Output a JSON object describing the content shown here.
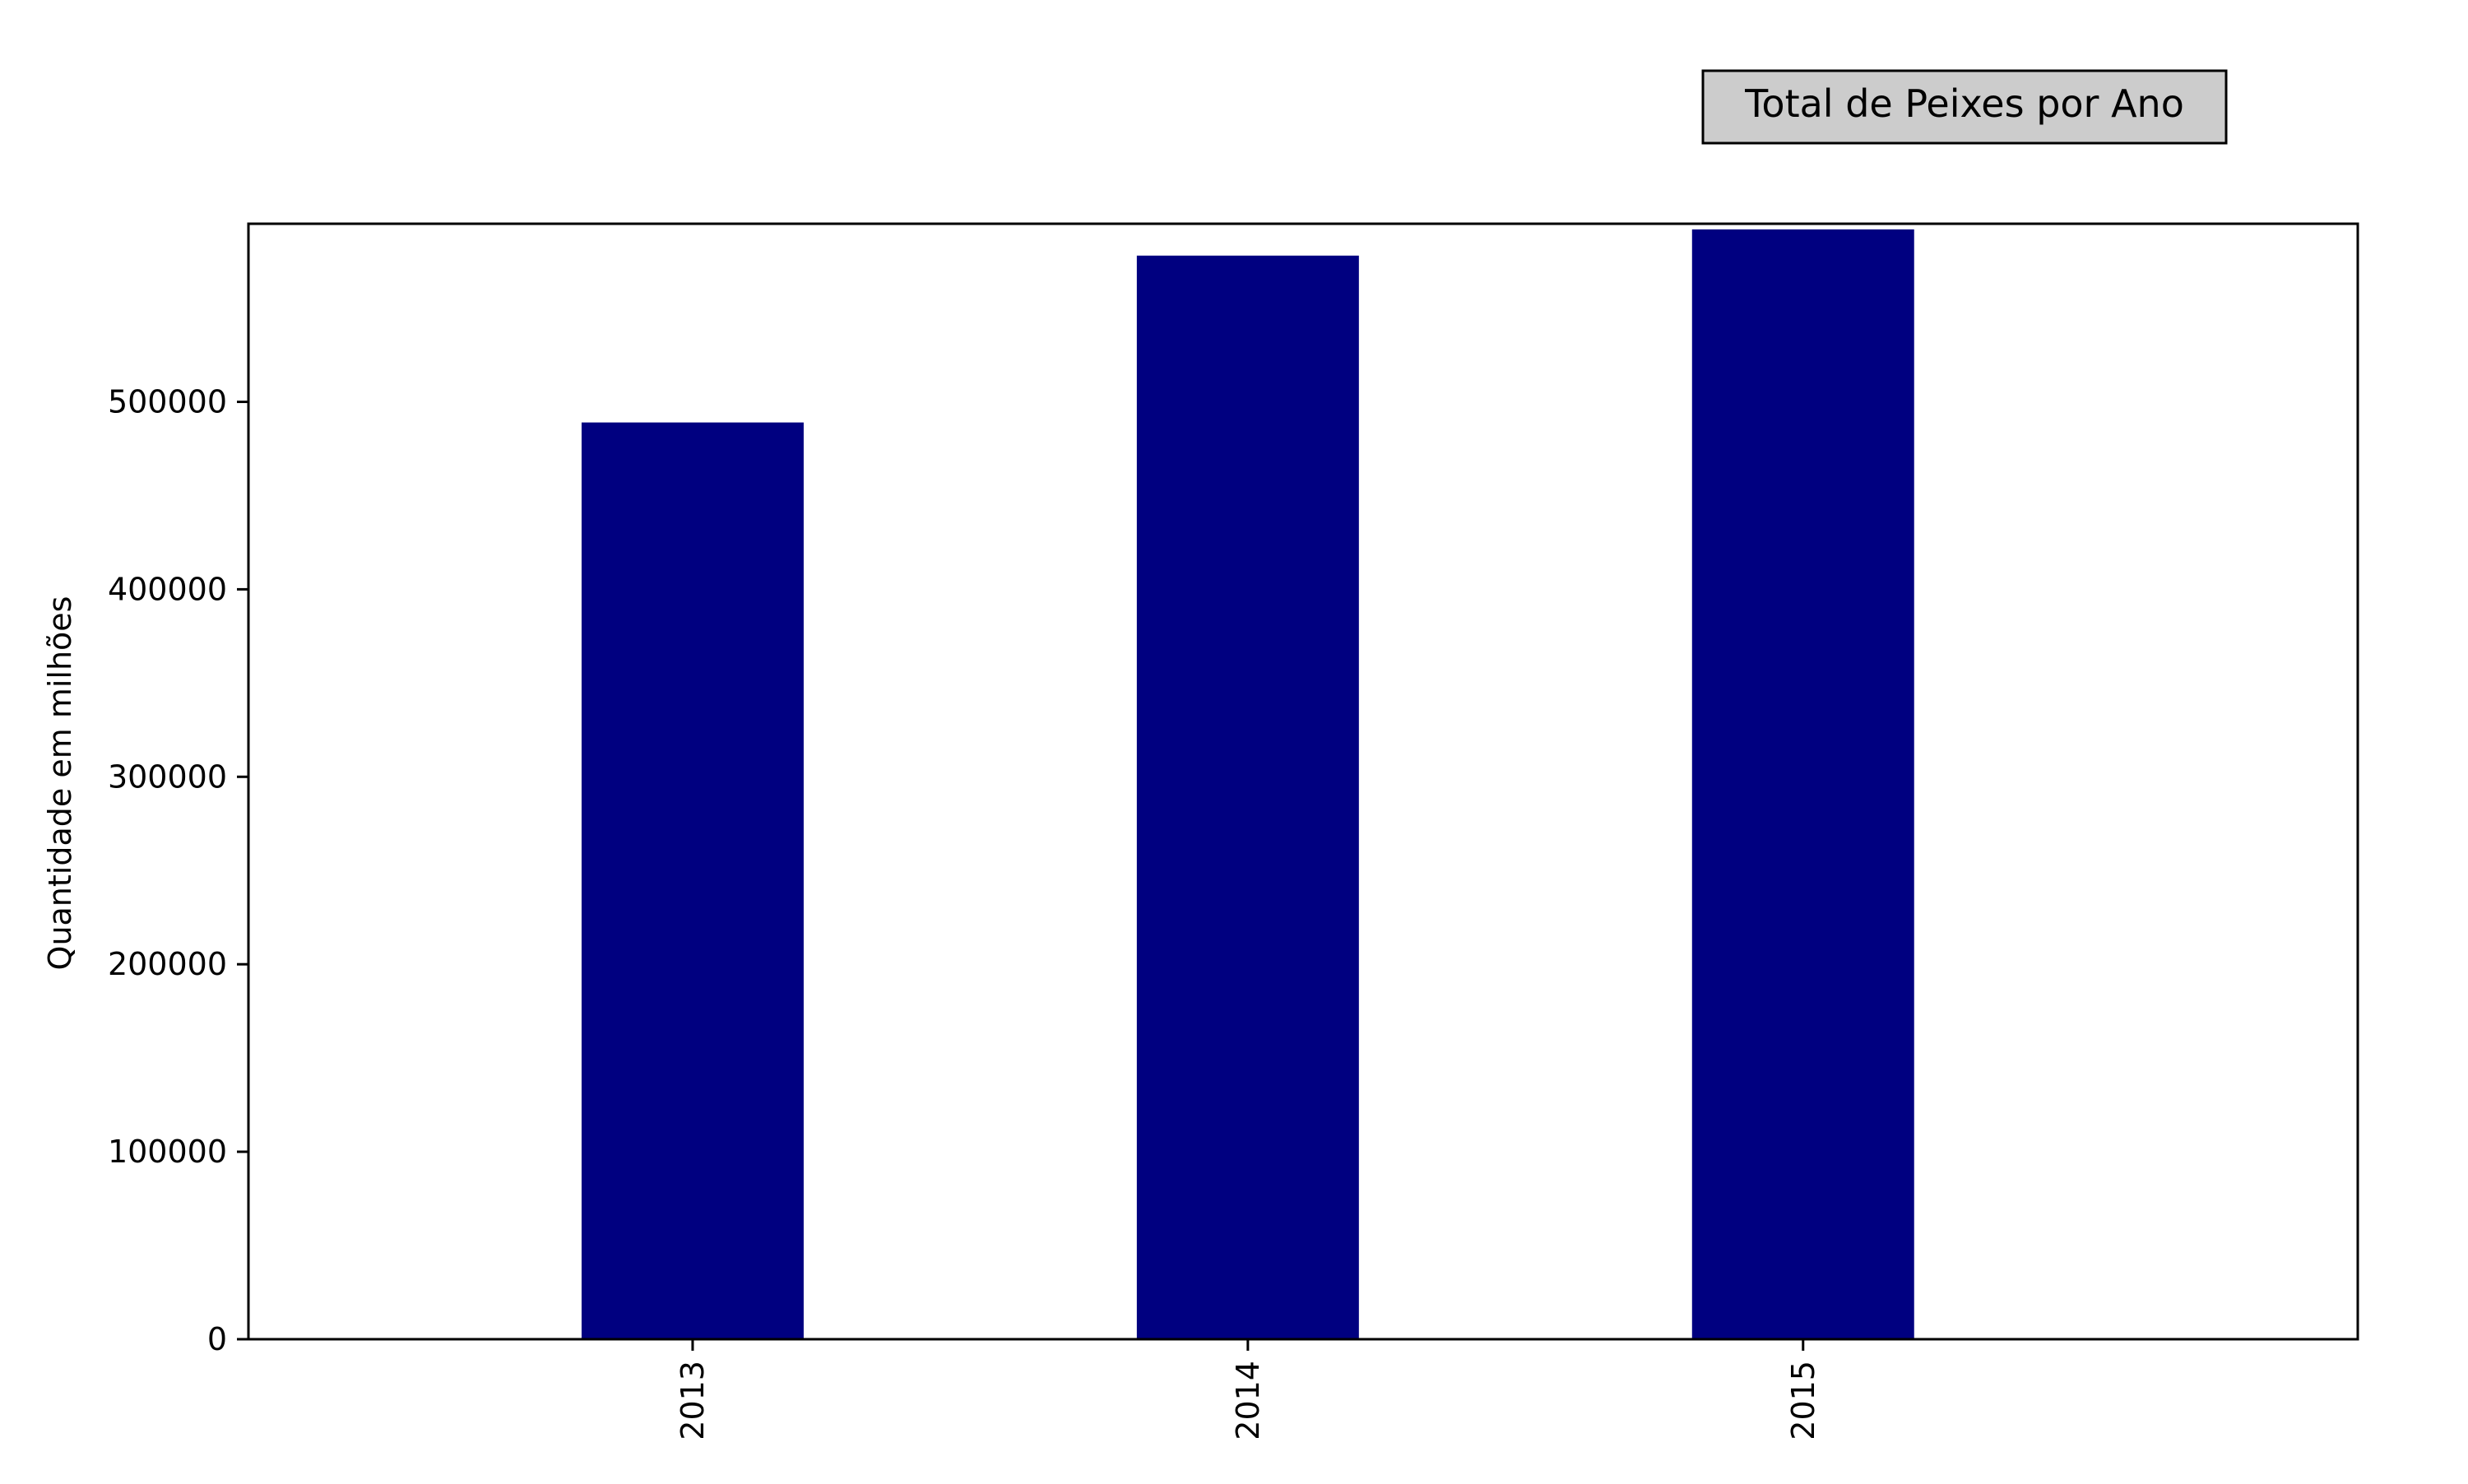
{
  "chart_data": {
    "type": "bar",
    "title": "Total de Peixes por Ano",
    "ylabel": "Quantidade em milhões",
    "xlabel": "",
    "categories": [
      "2013",
      "2014",
      "2015"
    ],
    "values": [
      489000,
      578000,
      592000
    ],
    "ylim": [
      0,
      595000
    ],
    "yticks": [
      0,
      100000,
      200000,
      300000,
      400000,
      500000
    ],
    "ytick_labels": [
      "0",
      "100000",
      "200000",
      "300000",
      "400000",
      "500000"
    ],
    "grid": false,
    "legend": "none",
    "bar_color": "#000080",
    "title_box_color": "#cccccc"
  }
}
